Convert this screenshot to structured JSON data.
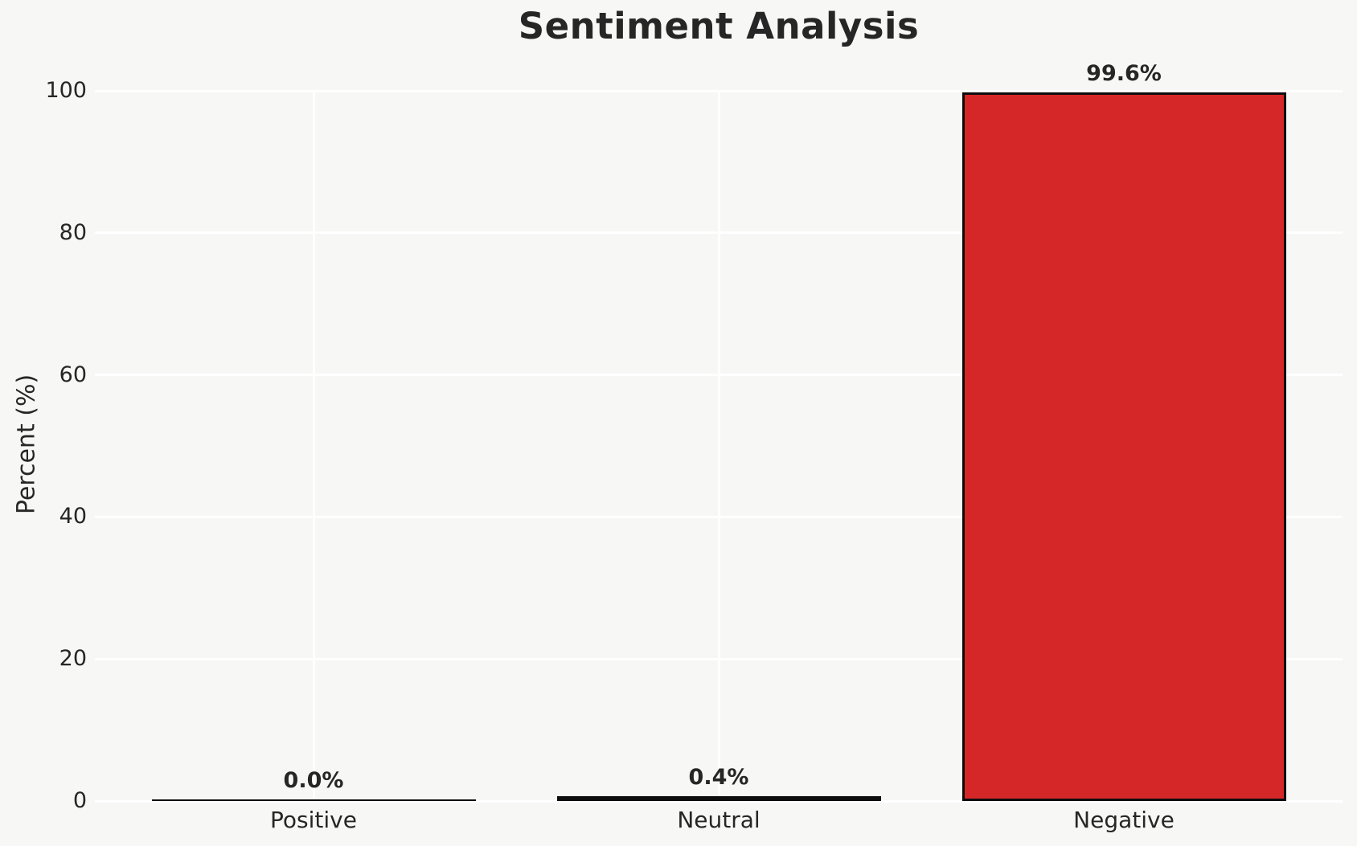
{
  "chart_data": {
    "type": "bar",
    "title": "Sentiment Analysis",
    "categories": [
      "Positive",
      "Neutral",
      "Negative"
    ],
    "values": [
      0.0,
      0.4,
      99.6
    ],
    "value_labels": [
      "0.0%",
      "0.4%",
      "99.6%"
    ],
    "xlabel": "",
    "ylabel": "Percent (%)",
    "ylim": [
      0,
      100
    ],
    "yticks": [
      "0",
      "20",
      "40",
      "60",
      "80",
      "100"
    ],
    "grid": {
      "show": true,
      "color": "#ffffff",
      "axes": "both"
    },
    "legend": "none",
    "colors": {
      "bar_fill": "#d62728",
      "bar_edge": "#0d0d0d",
      "background": "#f7f7f6",
      "gridline": "#ffffff",
      "text": "#262626"
    }
  }
}
